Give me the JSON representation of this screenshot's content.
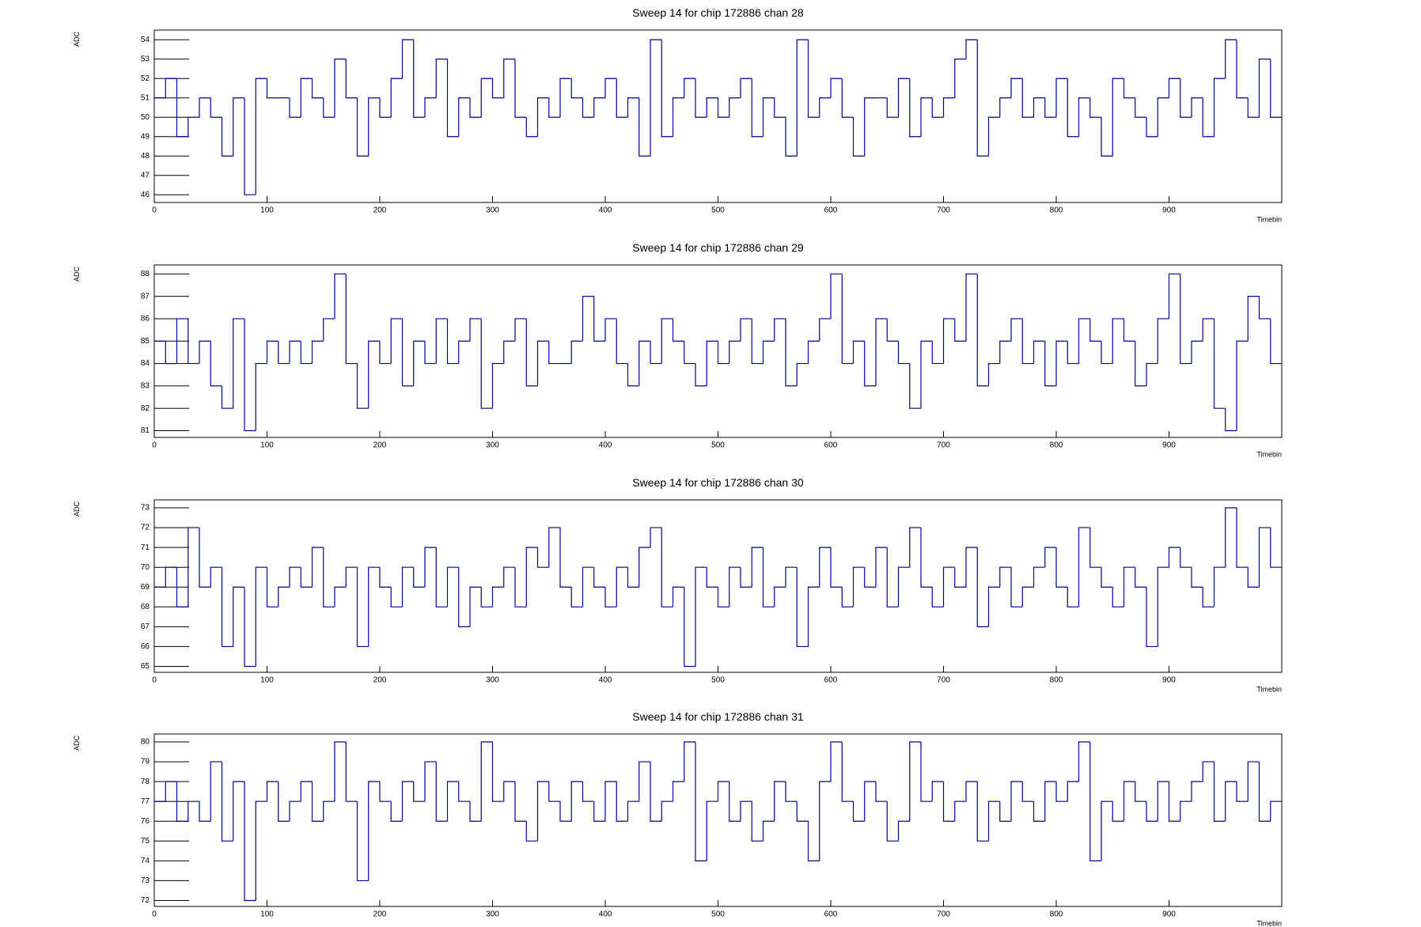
{
  "chart_data": [
    {
      "type": "histogram",
      "title": "Sweep 14 for chip 172886 chan 28",
      "x_label": "Timebin",
      "y_label": "ADC",
      "color": "#000099",
      "bins": [
        0,
        10,
        20,
        30,
        40,
        50,
        60,
        70,
        80,
        90,
        100,
        110,
        120,
        130,
        140,
        150,
        160,
        170,
        180,
        190,
        200,
        210,
        220,
        230,
        240,
        250,
        260,
        270,
        280,
        290,
        300,
        310,
        320,
        330,
        340,
        350,
        360,
        370,
        380,
        390,
        400,
        410,
        420,
        430,
        440,
        450,
        460,
        470,
        480,
        490,
        500,
        510,
        520,
        530,
        540,
        550,
        560,
        570,
        580,
        590,
        600,
        610,
        620,
        630,
        640,
        650,
        660,
        670,
        680,
        690,
        700,
        710,
        720,
        730,
        740,
        750,
        760,
        770,
        780,
        790,
        800,
        810,
        820,
        830,
        840,
        850,
        860,
        870,
        880,
        890,
        900,
        910,
        920,
        930,
        940,
        950,
        960,
        970,
        980,
        990,
        1000
      ],
      "values": [
        51,
        52,
        49,
        50,
        51,
        50,
        48,
        51,
        46,
        52,
        51,
        51,
        50,
        52,
        51,
        50,
        53,
        51,
        48,
        51,
        50,
        52,
        54,
        50,
        51,
        53,
        49,
        51,
        50,
        52,
        51,
        53,
        50,
        49,
        51,
        50,
        52,
        51,
        50,
        51,
        52,
        50,
        51,
        48,
        54,
        49,
        51,
        52,
        50,
        51,
        50,
        51,
        52,
        49,
        51,
        50,
        48,
        54,
        50,
        51,
        52,
        50,
        48,
        51,
        51,
        50,
        52,
        49,
        51,
        50,
        51,
        53,
        54,
        48,
        50,
        51,
        52,
        50,
        51,
        50,
        52,
        49,
        51,
        50,
        48,
        52,
        51,
        50,
        49,
        51,
        52,
        50,
        51,
        49,
        52,
        54,
        51,
        50,
        53,
        50
      ],
      "xlim": [
        0,
        1000
      ],
      "xticks": [
        0,
        100,
        200,
        300,
        400,
        500,
        600,
        700,
        800,
        900
      ],
      "ylim": [
        45.6,
        54.5
      ],
      "yticks": [
        46,
        47,
        48,
        49,
        50,
        51,
        52,
        53,
        54
      ]
    },
    {
      "type": "histogram",
      "title": "Sweep 14 for chip 172886 chan 29",
      "x_label": "Timebin",
      "y_label": "ADC",
      "color": "#000099",
      "bins": [
        0,
        10,
        20,
        30,
        40,
        50,
        60,
        70,
        80,
        90,
        100,
        110,
        120,
        130,
        140,
        150,
        160,
        170,
        180,
        190,
        200,
        210,
        220,
        230,
        240,
        250,
        260,
        270,
        280,
        290,
        300,
        310,
        320,
        330,
        340,
        350,
        360,
        370,
        380,
        390,
        400,
        410,
        420,
        430,
        440,
        450,
        460,
        470,
        480,
        490,
        500,
        510,
        520,
        530,
        540,
        550,
        560,
        570,
        580,
        590,
        600,
        610,
        620,
        630,
        640,
        650,
        660,
        670,
        680,
        690,
        700,
        710,
        720,
        730,
        740,
        750,
        760,
        770,
        780,
        790,
        800,
        810,
        820,
        830,
        840,
        850,
        860,
        870,
        880,
        890,
        900,
        910,
        920,
        930,
        940,
        950,
        960,
        970,
        980,
        990,
        1000
      ],
      "values": [
        85,
        84,
        86,
        84,
        85,
        83,
        82,
        86,
        81,
        84,
        85,
        84,
        85,
        84,
        85,
        86,
        88,
        84,
        82,
        85,
        84,
        86,
        83,
        85,
        84,
        86,
        84,
        85,
        86,
        82,
        84,
        85,
        86,
        83,
        85,
        84,
        84,
        85,
        87,
        85,
        86,
        84,
        83,
        85,
        84,
        86,
        85,
        84,
        83,
        85,
        84,
        85,
        86,
        84,
        85,
        86,
        83,
        84,
        85,
        86,
        88,
        84,
        85,
        83,
        86,
        85,
        84,
        82,
        85,
        84,
        86,
        85,
        88,
        83,
        84,
        85,
        86,
        84,
        85,
        83,
        85,
        84,
        86,
        85,
        84,
        86,
        85,
        83,
        84,
        86,
        88,
        84,
        85,
        86,
        82,
        81,
        85,
        87,
        86,
        84
      ],
      "xlim": [
        0,
        1000
      ],
      "xticks": [
        0,
        100,
        200,
        300,
        400,
        500,
        600,
        700,
        800,
        900
      ],
      "ylim": [
        80.7,
        88.4
      ],
      "yticks": [
        81,
        82,
        83,
        84,
        85,
        86,
        87,
        88
      ]
    },
    {
      "type": "histogram",
      "title": "Sweep 14 for chip 172886 chan 30",
      "x_label": "Timebin",
      "y_label": "ADC",
      "color": "#000099",
      "bins": [
        0,
        10,
        20,
        30,
        40,
        50,
        60,
        70,
        80,
        90,
        100,
        110,
        120,
        130,
        140,
        150,
        160,
        170,
        180,
        190,
        200,
        210,
        220,
        230,
        240,
        250,
        260,
        270,
        280,
        290,
        300,
        310,
        320,
        330,
        340,
        350,
        360,
        370,
        380,
        390,
        400,
        410,
        420,
        430,
        440,
        450,
        460,
        470,
        480,
        490,
        500,
        510,
        520,
        530,
        540,
        550,
        560,
        570,
        580,
        590,
        600,
        610,
        620,
        630,
        640,
        650,
        660,
        670,
        680,
        690,
        700,
        710,
        720,
        730,
        740,
        750,
        760,
        770,
        780,
        790,
        800,
        810,
        820,
        830,
        840,
        850,
        860,
        870,
        880,
        890,
        900,
        910,
        920,
        930,
        940,
        950,
        960,
        970,
        980,
        990,
        1000
      ],
      "values": [
        69,
        70,
        68,
        72,
        69,
        70,
        66,
        69,
        65,
        70,
        68,
        69,
        70,
        69,
        71,
        68,
        69,
        70,
        66,
        70,
        69,
        68,
        70,
        69,
        71,
        68,
        70,
        67,
        69,
        68,
        69,
        70,
        68,
        71,
        70,
        72,
        69,
        68,
        70,
        69,
        68,
        70,
        69,
        71,
        72,
        68,
        69,
        65,
        70,
        69,
        68,
        70,
        69,
        71,
        68,
        69,
        70,
        66,
        69,
        71,
        69,
        68,
        70,
        69,
        71,
        68,
        70,
        72,
        69,
        68,
        70,
        69,
        71,
        67,
        69,
        70,
        68,
        69,
        70,
        71,
        69,
        68,
        72,
        70,
        69,
        68,
        70,
        69,
        66,
        70,
        71,
        70,
        69,
        68,
        70,
        73,
        70,
        69,
        72,
        70
      ],
      "xlim": [
        0,
        1000
      ],
      "xticks": [
        0,
        100,
        200,
        300,
        400,
        500,
        600,
        700,
        800,
        900
      ],
      "ylim": [
        64.7,
        73.4
      ],
      "yticks": [
        65,
        66,
        67,
        68,
        69,
        70,
        71,
        72,
        73
      ]
    },
    {
      "type": "histogram",
      "title": "Sweep 14 for chip 172886 chan 31",
      "x_label": "Timebin",
      "y_label": "ADC",
      "color": "#000099",
      "bins": [
        0,
        10,
        20,
        30,
        40,
        50,
        60,
        70,
        80,
        90,
        100,
        110,
        120,
        130,
        140,
        150,
        160,
        170,
        180,
        190,
        200,
        210,
        220,
        230,
        240,
        250,
        260,
        270,
        280,
        290,
        300,
        310,
        320,
        330,
        340,
        350,
        360,
        370,
        380,
        390,
        400,
        410,
        420,
        430,
        440,
        450,
        460,
        470,
        480,
        490,
        500,
        510,
        520,
        530,
        540,
        550,
        560,
        570,
        580,
        590,
        600,
        610,
        620,
        630,
        640,
        650,
        660,
        670,
        680,
        690,
        700,
        710,
        720,
        730,
        740,
        750,
        760,
        770,
        780,
        790,
        800,
        810,
        820,
        830,
        840,
        850,
        860,
        870,
        880,
        890,
        900,
        910,
        920,
        930,
        940,
        950,
        960,
        970,
        980,
        990,
        1000
      ],
      "values": [
        77,
        78,
        76,
        77,
        76,
        79,
        75,
        78,
        72,
        77,
        78,
        76,
        77,
        78,
        76,
        77,
        80,
        77,
        73,
        78,
        77,
        76,
        78,
        77,
        79,
        76,
        78,
        77,
        76,
        80,
        77,
        78,
        76,
        75,
        78,
        77,
        76,
        78,
        77,
        76,
        78,
        76,
        77,
        79,
        76,
        77,
        78,
        80,
        74,
        77,
        78,
        76,
        77,
        75,
        76,
        78,
        77,
        76,
        74,
        78,
        80,
        77,
        76,
        78,
        77,
        75,
        76,
        80,
        77,
        78,
        76,
        77,
        78,
        75,
        77,
        76,
        78,
        77,
        76,
        78,
        77,
        78,
        80,
        74,
        77,
        76,
        78,
        77,
        76,
        78,
        76,
        77,
        78,
        79,
        76,
        78,
        77,
        79,
        76,
        77
      ],
      "xlim": [
        0,
        1000
      ],
      "xticks": [
        0,
        100,
        200,
        300,
        400,
        500,
        600,
        700,
        800,
        900
      ],
      "ylim": [
        71.7,
        80.4
      ],
      "yticks": [
        72,
        73,
        74,
        75,
        76,
        77,
        78,
        79,
        80
      ]
    }
  ]
}
